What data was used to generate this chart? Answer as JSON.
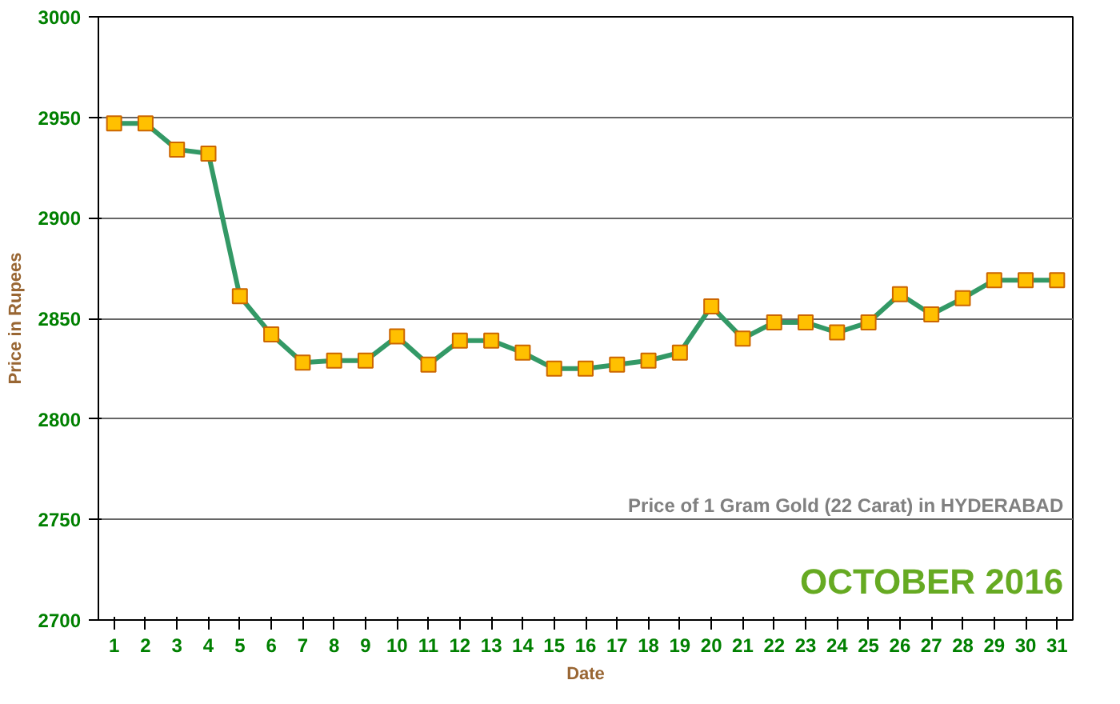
{
  "chart_data": {
    "type": "line",
    "title": "Price of 1 Gram Gold (22 Carat) in HYDERABAD",
    "subtitle": "OCTOBER 2016",
    "xlabel": "Date",
    "ylabel": "Price in Rupees",
    "x": [
      1,
      2,
      3,
      4,
      5,
      6,
      7,
      8,
      9,
      10,
      11,
      12,
      13,
      14,
      15,
      16,
      17,
      18,
      19,
      20,
      21,
      22,
      23,
      24,
      25,
      26,
      27,
      28,
      29,
      30,
      31
    ],
    "series": [
      {
        "color": "#339966",
        "values": [
          2947,
          2947,
          2934,
          2932,
          2861,
          2842,
          2828,
          2829,
          2829,
          2841,
          2827,
          2839,
          2839,
          2833,
          2825,
          2825,
          2827,
          2829,
          2833,
          2856,
          2840,
          2848,
          2848,
          2843,
          2848,
          2862,
          2852,
          2860,
          2869,
          2869,
          2869
        ]
      }
    ],
    "xlim": [
      0.5,
      31.5
    ],
    "xticks": [
      1,
      2,
      3,
      4,
      5,
      6,
      7,
      8,
      9,
      10,
      11,
      12,
      13,
      14,
      15,
      16,
      17,
      18,
      19,
      20,
      21,
      22,
      23,
      24,
      25,
      26,
      27,
      28,
      29,
      30,
      31
    ],
    "ylim": [
      2700,
      3000
    ],
    "yticks": [
      2700,
      2750,
      2800,
      2850,
      2900,
      2950,
      3000
    ],
    "grid": "y",
    "marker": "square",
    "line_style": "solid"
  }
}
